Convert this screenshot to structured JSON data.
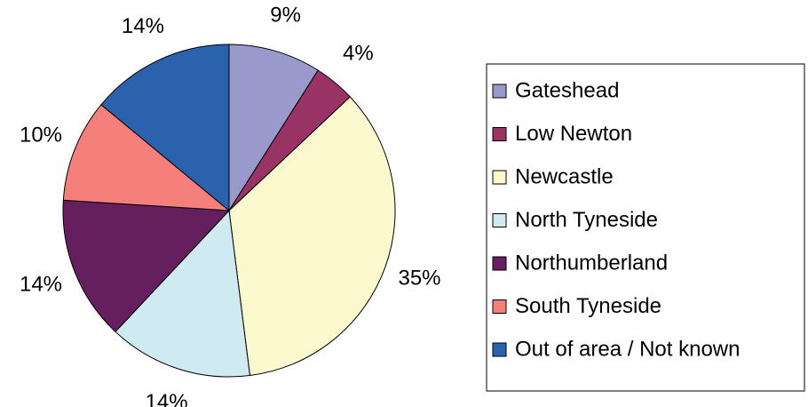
{
  "chart_data": {
    "type": "pie",
    "categories": [
      "Gateshead",
      "Low Newton",
      "Newcastle",
      "North Tyneside",
      "Northumberland",
      "South Tyneside",
      "Out of area / Not known"
    ],
    "values": [
      9,
      4,
      35,
      14,
      14,
      10,
      14
    ],
    "value_labels": [
      "9%",
      "4%",
      "35%",
      "14%",
      "14%",
      "10%",
      "14%"
    ],
    "colors": [
      "#9999cc",
      "#993366",
      "#fcf9cf",
      "#cfeaf1",
      "#651f5f",
      "#f47f7b",
      "#2b62ae"
    ],
    "legend": "right"
  }
}
